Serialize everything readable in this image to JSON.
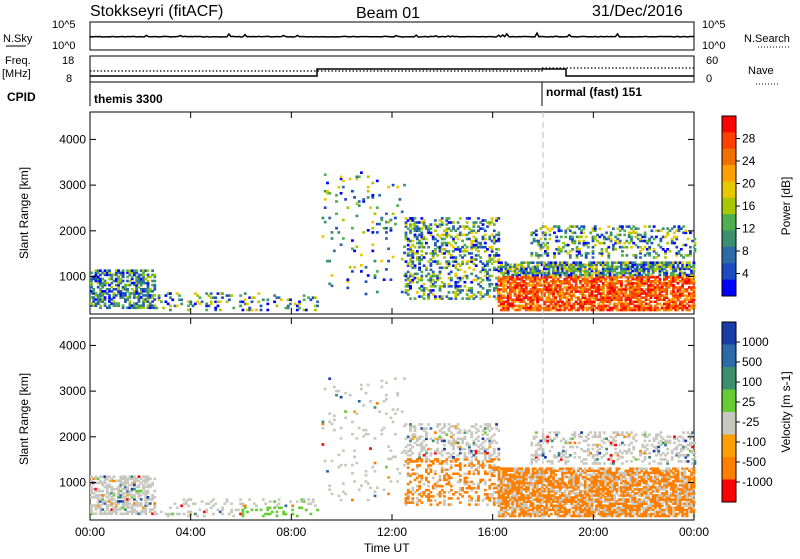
{
  "header": {
    "station": "Stokkseyri (fitACF)",
    "beam": "Beam 01",
    "date": "31/Dec/2016"
  },
  "top_panels": {
    "nsky_label": "N.Sky",
    "nsky_ticks": [
      "10^5",
      "10^0"
    ],
    "nsearch_label": "N.Search",
    "nsearch_ticks": [
      "10^5",
      "10^0"
    ],
    "freq_label": "Freq.",
    "freq_unit": "[MHz]",
    "freq_ticks": [
      "18",
      "8"
    ],
    "nave_label": "Nave",
    "nave_ticks": [
      "60",
      "0"
    ],
    "cpid_label": "CPID",
    "cpid_segments": [
      {
        "label": "themis 3300",
        "start_hour": 0,
        "end_hour": 18
      },
      {
        "label": "normal (fast) 151",
        "start_hour": 18,
        "end_hour": 24
      }
    ]
  },
  "chart_data": [
    {
      "type": "heatmap",
      "title": "",
      "xlabel": "Time UT",
      "ylabel": "Slant Range [km]",
      "xlim": [
        0,
        24
      ],
      "ylim": [
        180,
        4600
      ],
      "x_ticks": [
        "00:00",
        "04:00",
        "08:00",
        "12:00",
        "16:00",
        "20:00",
        "00:00"
      ],
      "y_ticks": [
        "1000",
        "2000",
        "3000",
        "4000"
      ],
      "colorbar": {
        "label": "Power [dB]",
        "ticks": [
          "28",
          "24",
          "20",
          "16",
          "12",
          "8",
          "4"
        ],
        "colors": [
          "#ff0000",
          "#ff4000",
          "#f07000",
          "#ffa000",
          "#e8c800",
          "#a8c800",
          "#4caf50",
          "#3a8f6e",
          "#2e6aa8",
          "#1a4cc0",
          "#0000ff"
        ]
      },
      "features": [
        {
          "region": "00:00-02:30",
          "range_km": [
            300,
            1100
          ],
          "level_db": "4-16"
        },
        {
          "region": "09:30-12:30",
          "range_km": [
            1000,
            3200
          ],
          "level_db": "4-12"
        },
        {
          "region": "13:00-16:00",
          "range_km": [
            600,
            2200
          ],
          "level_db": "4-20"
        },
        {
          "region": "16:30-24:00",
          "range_km": [
            300,
            1300
          ],
          "level_db": "8-28"
        }
      ]
    },
    {
      "type": "heatmap",
      "title": "",
      "xlabel": "Time UT",
      "ylabel": "Slant Range [km]",
      "xlim": [
        0,
        24
      ],
      "ylim": [
        180,
        4600
      ],
      "x_ticks": [
        "00:00",
        "04:00",
        "08:00",
        "12:00",
        "16:00",
        "20:00",
        "00:00"
      ],
      "y_ticks": [
        "1000",
        "2000",
        "3000",
        "4000"
      ],
      "colorbar": {
        "label": "Velocity [m s-1]",
        "ticks": [
          "1000",
          "500",
          "100",
          "25",
          "-25",
          "-100",
          "-500",
          "-1000"
        ],
        "colors": [
          "#1a3ca8",
          "#2e6aa8",
          "#3a8f6e",
          "#66cc33",
          "#c8c8c0",
          "#ffa000",
          "#ff8000",
          "#ff0000"
        ]
      },
      "features": [
        {
          "region": "00:00-03:00",
          "range_km": [
            300,
            1100
          ],
          "velocity": "-25 to 25"
        },
        {
          "region": "06:00-09:00",
          "range_km": [
            300,
            500
          ],
          "velocity": "100"
        },
        {
          "region": "12:00-16:00",
          "range_km": [
            600,
            2000
          ],
          "velocity": "-100 to -500"
        },
        {
          "region": "16:00-24:00",
          "range_km": [
            300,
            1400
          ],
          "velocity": "-100"
        }
      ]
    }
  ]
}
